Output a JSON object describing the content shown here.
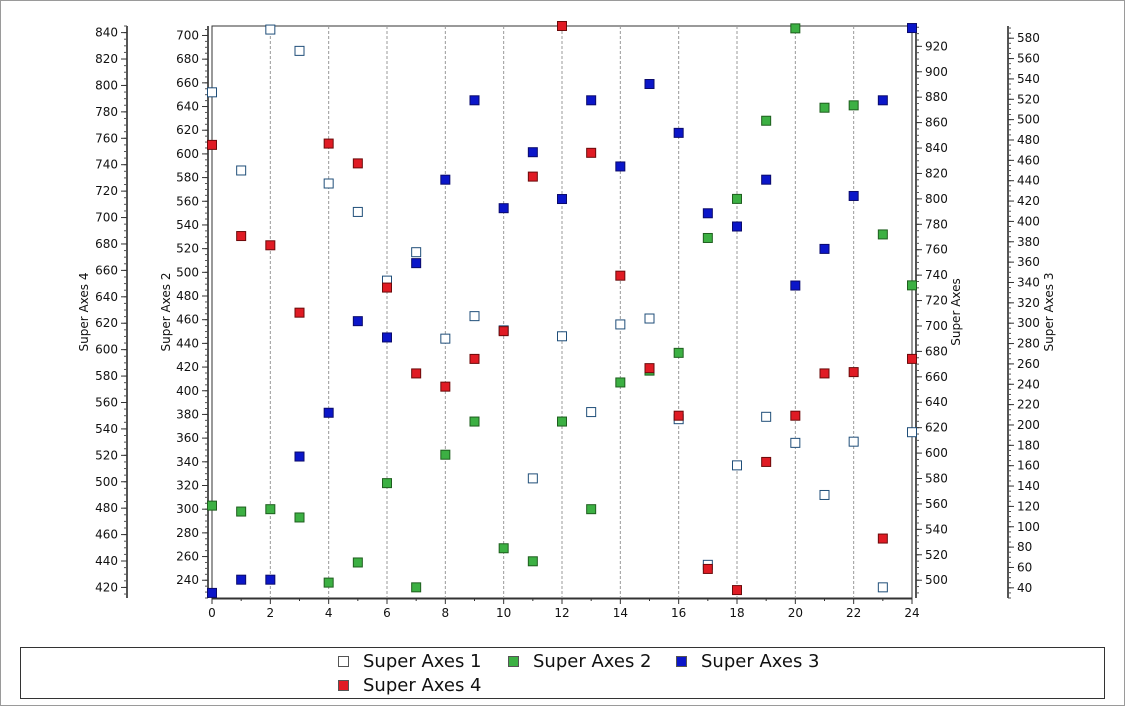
{
  "chart_data": {
    "type": "scatter",
    "title": "",
    "xlabel": "",
    "x": [
      0,
      1,
      2,
      3,
      4,
      5,
      6,
      7,
      8,
      9,
      10,
      11,
      12,
      13,
      14,
      15,
      16,
      17,
      18,
      19,
      20,
      21,
      22,
      23,
      24
    ],
    "x_ticks": [
      0,
      2,
      4,
      6,
      8,
      10,
      12,
      14,
      16,
      18,
      20,
      22,
      24
    ],
    "xlim": [
      0,
      24
    ],
    "grid": "vertical dashed lines at x tick positions",
    "axes": [
      {
        "id": "a4",
        "title": "Super Axes 4",
        "side": "left-outer",
        "range": [
          412,
          845
        ],
        "ticks": [
          420,
          440,
          460,
          480,
          500,
          520,
          540,
          560,
          580,
          600,
          620,
          640,
          660,
          680,
          700,
          720,
          740,
          760,
          780,
          800,
          820,
          840
        ]
      },
      {
        "id": "a2",
        "title": "Super Axes 2",
        "side": "left-inner",
        "range": [
          225,
          708
        ],
        "ticks": [
          240,
          260,
          280,
          300,
          320,
          340,
          360,
          380,
          400,
          420,
          440,
          460,
          480,
          500,
          520,
          540,
          560,
          580,
          600,
          620,
          640,
          660,
          680,
          700
        ]
      },
      {
        "id": "a1",
        "title": "Super Axes",
        "side": "right-inner",
        "range": [
          486,
          936
        ],
        "ticks": [
          500,
          520,
          540,
          560,
          580,
          600,
          620,
          640,
          660,
          680,
          700,
          720,
          740,
          760,
          780,
          800,
          820,
          840,
          860,
          880,
          900,
          920
        ]
      },
      {
        "id": "a3",
        "title": "Super Axes 3",
        "side": "right-outer",
        "range": [
          30,
          592
        ],
        "ticks": [
          40,
          60,
          80,
          100,
          120,
          140,
          160,
          180,
          200,
          220,
          240,
          260,
          280,
          300,
          320,
          340,
          360,
          380,
          400,
          420,
          440,
          460,
          480,
          500,
          520,
          540,
          560,
          580
        ]
      }
    ],
    "series": [
      {
        "name": "Super Axes 1",
        "axis": "a2",
        "color": "#ffffff",
        "stroke": "#1f4e79",
        "values": [
          652,
          586,
          705,
          687,
          575,
          551,
          493,
          517,
          444,
          463,
          451,
          326,
          446,
          382,
          456,
          461,
          376,
          253,
          337,
          378,
          356,
          312,
          357,
          234,
          365
        ]
      },
      {
        "name": "Super Axes 2",
        "axis": "a2",
        "color": "#3cb043",
        "stroke": "#1e5e1e",
        "values": [
          303,
          298,
          300,
          293,
          238,
          255,
          322,
          234,
          346,
          374,
          267,
          256,
          374,
          300,
          407,
          417,
          432,
          529,
          562,
          628,
          706,
          639,
          641,
          532,
          489
        ]
      },
      {
        "name": "Super Axes 3",
        "axis": "a3",
        "color": "#0b16c9",
        "stroke": "#0a0a6b",
        "values": [
          35,
          48,
          48,
          169,
          212,
          302,
          286,
          359,
          441,
          519,
          413,
          468,
          422,
          519,
          454,
          535,
          487,
          408,
          395,
          441,
          337,
          373,
          425,
          519,
          590
        ]
      },
      {
        "name": "Super Axes 4",
        "axis": "a4",
        "color": "#e01b24",
        "stroke": "#6b0a0a",
        "values": [
          755,
          686,
          679,
          628,
          756,
          741,
          647,
          582,
          572,
          593,
          614,
          731,
          845,
          749,
          656,
          586,
          550,
          434,
          418,
          515,
          550,
          582,
          583,
          457,
          593
        ]
      }
    ]
  },
  "legend": {
    "items": [
      {
        "label": "Super Axes 1",
        "color": "#ffffff"
      },
      {
        "label": "Super Axes 2",
        "color": "#3cb043"
      },
      {
        "label": "Super Axes 3",
        "color": "#0b16c9"
      },
      {
        "label": "Super Axes 4",
        "color": "#e01b24"
      }
    ]
  }
}
